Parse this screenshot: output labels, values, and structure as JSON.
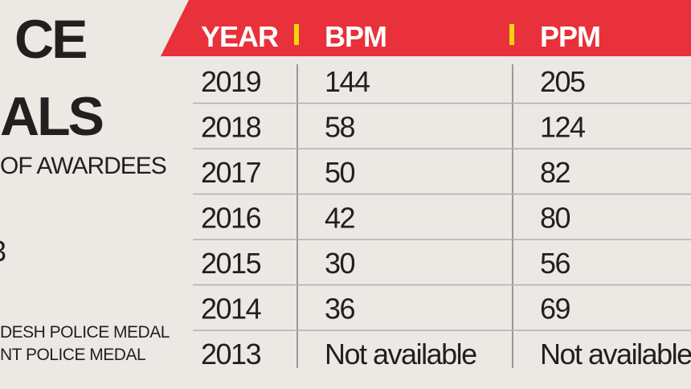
{
  "side": {
    "title_line1": "CE",
    "title_line2": "ALS",
    "subtitle": "OF AWARDEES",
    "fragment": "3",
    "legend_line1": "DESH POLICE MEDAL",
    "legend_line2": "NT POLICE MEDAL"
  },
  "table": {
    "headers": [
      "YEAR",
      "BPM",
      "PPM"
    ],
    "rows": [
      [
        2019,
        144,
        205
      ],
      [
        2018,
        58,
        124
      ],
      [
        2017,
        50,
        82
      ],
      [
        2016,
        42,
        80
      ],
      [
        2015,
        30,
        56
      ],
      [
        2014,
        36,
        69
      ],
      [
        2013,
        "Not available",
        "Not available"
      ]
    ]
  }
}
